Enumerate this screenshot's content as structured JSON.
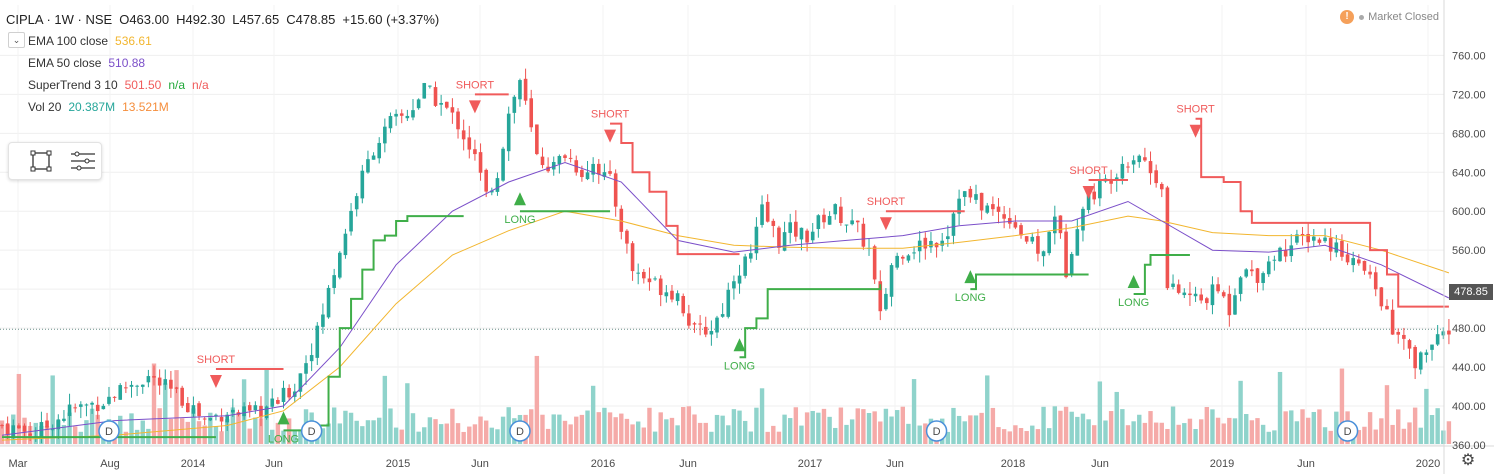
{
  "header": {
    "symbol": "CIPLA · 1W · NSE",
    "open": "O463.00",
    "high": "H492.30",
    "low": "L457.65",
    "close": "C478.85",
    "change": "+15.60 (+3.37%)",
    "market_status": "Market Closed",
    "market_icon": "!",
    "collapse_icon": "chevron-down-icon"
  },
  "indicators": [
    {
      "name": "EMA 100 close",
      "v1": "536.61",
      "v1_color": "#f2b62f"
    },
    {
      "name": "EMA 50 close",
      "v1": "510.88",
      "v1_color": "#7b4fc9"
    },
    {
      "name": "SuperTrend 3 10",
      "v1": "501.50",
      "v1_color": "#f05b5b",
      "v2": "n/a",
      "v2_color": "#22a83a",
      "v3": "n/a",
      "v3_color": "#f05b5b"
    },
    {
      "name": "Vol 20",
      "v1": "20.387M",
      "v1_color": "#26a69a",
      "v2": "13.521M",
      "v2_color": "#f58e3c"
    }
  ],
  "last_price": "478.85",
  "colors": {
    "up": "#26a69a",
    "down": "#ef5350",
    "ema100": "#f2b62f",
    "ema50": "#7b4fc9",
    "st_up": "#3fae49",
    "st_down": "#f05b5b",
    "vol_up": "#8fd3cb",
    "vol_down": "#f5aaa8"
  },
  "chart_data": {
    "type": "candlestick",
    "y_axis": {
      "ticks": [
        360,
        400,
        440,
        480,
        520,
        560,
        600,
        640,
        680,
        720,
        760
      ],
      "ylim": [
        320,
        770
      ],
      "position": "right"
    },
    "x_axis": {
      "ticks": [
        "Mar",
        "Aug",
        "2014",
        "Jun",
        "2015",
        "Jun",
        "2016",
        "Jun",
        "2017",
        "Jun",
        "2018",
        "Jun",
        "2019",
        "Jun",
        "2020"
      ]
    },
    "current_price": 478.85,
    "close_path_approx": [
      [
        0,
        380
      ],
      [
        6,
        372
      ],
      [
        12,
        395
      ],
      [
        18,
        405
      ],
      [
        22,
        420
      ],
      [
        26,
        430
      ],
      [
        30,
        415
      ],
      [
        34,
        398
      ],
      [
        36,
        385
      ],
      [
        40,
        395
      ],
      [
        44,
        390
      ],
      [
        48,
        400
      ],
      [
        52,
        420
      ],
      [
        56,
        475
      ],
      [
        60,
        560
      ],
      [
        63,
        620
      ],
      [
        66,
        665
      ],
      [
        69,
        690
      ],
      [
        72,
        700
      ],
      [
        75,
        725
      ],
      [
        78,
        710
      ],
      [
        81,
        690
      ],
      [
        84,
        655
      ],
      [
        86,
        615
      ],
      [
        88,
        640
      ],
      [
        90,
        700
      ],
      [
        92,
        735
      ],
      [
        95,
        655
      ],
      [
        98,
        645
      ],
      [
        100,
        660
      ],
      [
        103,
        640
      ],
      [
        105,
        650
      ],
      [
        108,
        630
      ],
      [
        112,
        540
      ],
      [
        116,
        525
      ],
      [
        120,
        515
      ],
      [
        123,
        475
      ],
      [
        126,
        480
      ],
      [
        128,
        500
      ],
      [
        130,
        535
      ],
      [
        133,
        555
      ],
      [
        135,
        600
      ],
      [
        138,
        570
      ],
      [
        140,
        580
      ],
      [
        143,
        575
      ],
      [
        146,
        595
      ],
      [
        148,
        600
      ],
      [
        150,
        590
      ],
      [
        152,
        580
      ],
      [
        154,
        560
      ],
      [
        156,
        490
      ],
      [
        158,
        545
      ],
      [
        160,
        560
      ],
      [
        163,
        565
      ],
      [
        166,
        570
      ],
      [
        168,
        580
      ],
      [
        170,
        620
      ],
      [
        173,
        610
      ],
      [
        176,
        600
      ],
      [
        179,
        595
      ],
      [
        182,
        570
      ],
      [
        185,
        555
      ],
      [
        187,
        600
      ],
      [
        189,
        540
      ],
      [
        191,
        590
      ],
      [
        193,
        615
      ],
      [
        196,
        630
      ],
      [
        199,
        650
      ],
      [
        202,
        660
      ],
      [
        204,
        640
      ],
      [
        206,
        630
      ],
      [
        207,
        520
      ],
      [
        210,
        515
      ],
      [
        213,
        508
      ],
      [
        216,
        520
      ],
      [
        218,
        500
      ],
      [
        220,
        540
      ],
      [
        223,
        535
      ],
      [
        226,
        555
      ],
      [
        229,
        565
      ],
      [
        232,
        575
      ],
      [
        235,
        570
      ],
      [
        238,
        560
      ],
      [
        240,
        550
      ],
      [
        243,
        530
      ],
      [
        245,
        510
      ],
      [
        247,
        475
      ],
      [
        249,
        465
      ],
      [
        251,
        440
      ],
      [
        253,
        460
      ],
      [
        255,
        465
      ],
      [
        257,
        478.85
      ]
    ],
    "ema100_approx": [
      [
        0,
        365
      ],
      [
        20,
        370
      ],
      [
        40,
        380
      ],
      [
        50,
        395
      ],
      [
        60,
        440
      ],
      [
        70,
        505
      ],
      [
        80,
        555
      ],
      [
        90,
        580
      ],
      [
        100,
        600
      ],
      [
        110,
        590
      ],
      [
        120,
        575
      ],
      [
        130,
        565
      ],
      [
        140,
        563
      ],
      [
        150,
        562
      ],
      [
        160,
        562
      ],
      [
        170,
        568
      ],
      [
        180,
        575
      ],
      [
        190,
        583
      ],
      [
        200,
        595
      ],
      [
        206,
        590
      ],
      [
        215,
        578
      ],
      [
        225,
        575
      ],
      [
        235,
        575
      ],
      [
        245,
        560
      ],
      [
        257,
        536.61
      ]
    ],
    "ema50_approx": [
      [
        0,
        370
      ],
      [
        20,
        385
      ],
      [
        40,
        390
      ],
      [
        50,
        400
      ],
      [
        60,
        460
      ],
      [
        70,
        545
      ],
      [
        80,
        600
      ],
      [
        90,
        630
      ],
      [
        100,
        650
      ],
      [
        110,
        630
      ],
      [
        120,
        570
      ],
      [
        130,
        558
      ],
      [
        140,
        565
      ],
      [
        150,
        570
      ],
      [
        160,
        575
      ],
      [
        170,
        585
      ],
      [
        180,
        590
      ],
      [
        190,
        590
      ],
      [
        200,
        610
      ],
      [
        206,
        590
      ],
      [
        215,
        560
      ],
      [
        225,
        558
      ],
      [
        235,
        565
      ],
      [
        245,
        545
      ],
      [
        257,
        510.88
      ]
    ],
    "supertrend_segments": [
      {
        "dir": "up",
        "pts": [
          [
            0,
            368
          ],
          [
            38,
            368
          ]
        ]
      },
      {
        "dir": "down",
        "pts": [
          [
            38,
            438
          ],
          [
            50,
            438
          ]
        ]
      },
      {
        "dir": "up",
        "pts": [
          [
            50,
            375
          ],
          [
            56,
            380
          ],
          [
            58,
            430
          ],
          [
            60,
            480
          ],
          [
            62,
            510
          ],
          [
            64,
            540
          ],
          [
            66,
            570
          ],
          [
            68,
            575
          ],
          [
            70,
            590
          ],
          [
            72,
            595
          ],
          [
            82,
            595
          ]
        ]
      },
      {
        "dir": "down",
        "pts": [
          [
            84,
            720
          ],
          [
            90,
            720
          ]
        ]
      },
      {
        "dir": "up",
        "pts": [
          [
            92,
            600
          ],
          [
            108,
            600
          ]
        ]
      },
      {
        "dir": "down",
        "pts": [
          [
            108,
            690
          ],
          [
            110,
            670
          ],
          [
            112,
            640
          ],
          [
            115,
            620
          ],
          [
            118,
            585
          ],
          [
            120,
            556
          ],
          [
            131,
            556
          ]
        ]
      },
      {
        "dir": "up",
        "pts": [
          [
            131,
            450
          ],
          [
            132,
            480
          ],
          [
            134,
            490
          ],
          [
            136,
            520
          ],
          [
            156,
            525
          ]
        ]
      },
      {
        "dir": "down",
        "pts": [
          [
            157,
            600
          ],
          [
            171,
            600
          ]
        ]
      },
      {
        "dir": "up",
        "pts": [
          [
            172,
            520
          ],
          [
            173,
            535
          ],
          [
            193,
            535
          ]
        ]
      },
      {
        "dir": "down",
        "pts": [
          [
            193,
            632
          ],
          [
            200,
            632
          ]
        ]
      },
      {
        "dir": "up",
        "pts": [
          [
            201,
            515
          ],
          [
            203,
            545
          ],
          [
            204,
            555
          ],
          [
            211,
            555
          ]
        ]
      },
      {
        "dir": "down",
        "pts": [
          [
            212,
            695
          ],
          [
            213,
            635
          ],
          [
            217,
            630
          ],
          [
            220,
            600
          ],
          [
            222,
            588
          ],
          [
            240,
            588
          ],
          [
            243,
            560
          ],
          [
            246,
            535
          ],
          [
            248,
            502
          ],
          [
            257,
            502
          ]
        ]
      }
    ],
    "signals": [
      {
        "label": "SHORT",
        "x": 38,
        "type": "short"
      },
      {
        "label": "LONG",
        "x": 50,
        "type": "long"
      },
      {
        "label": "SHORT",
        "x": 84,
        "type": "short"
      },
      {
        "label": "LONG",
        "x": 92,
        "type": "long"
      },
      {
        "label": "SHORT",
        "x": 108,
        "type": "short"
      },
      {
        "label": "LONG",
        "x": 131,
        "type": "long"
      },
      {
        "label": "SHORT",
        "x": 157,
        "type": "short"
      },
      {
        "label": "LONG",
        "x": 172,
        "type": "long"
      },
      {
        "label": "SHORT",
        "x": 193,
        "type": "short"
      },
      {
        "label": "LONG",
        "x": 201,
        "type": "long"
      },
      {
        "label": "SHORT",
        "x": 212,
        "type": "short"
      }
    ],
    "dividend_markers": [
      {
        "label": "D",
        "x": 19
      },
      {
        "label": "D",
        "x": 55
      },
      {
        "label": "D",
        "x": 92
      },
      {
        "label": "D",
        "x": 166
      },
      {
        "label": "D",
        "x": 239
      }
    ],
    "volume_baseline": 440
  }
}
